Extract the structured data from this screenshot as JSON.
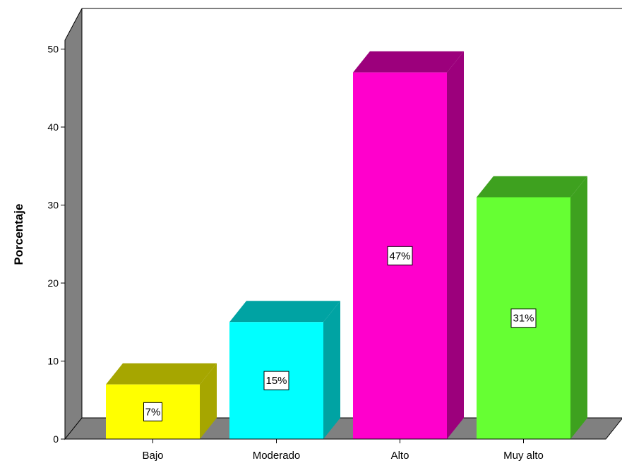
{
  "chart_data": {
    "type": "bar",
    "title": "",
    "xlabel": "",
    "ylabel": "Porcentaje",
    "ylim": [
      0,
      54
    ],
    "yticks": [
      0,
      10,
      20,
      30,
      40,
      50
    ],
    "grid": false,
    "legend": "none",
    "three_d": true,
    "categories": [
      "Bajo",
      "Moderado",
      "Alto",
      "Muy alto"
    ],
    "values": [
      7,
      15,
      47,
      31
    ],
    "data_labels": [
      "7%",
      "15%",
      "47%",
      "31%"
    ],
    "colors": {
      "bars": [
        "#ffff00",
        "#00ffff",
        "#ff00cc",
        "#66ff33"
      ],
      "bar_sides": [
        "#a6a600",
        "#00a3a3",
        "#9c007c",
        "#3ea11f"
      ],
      "walls": "#808080",
      "floor": "#808080",
      "background": "#ffffff"
    }
  }
}
